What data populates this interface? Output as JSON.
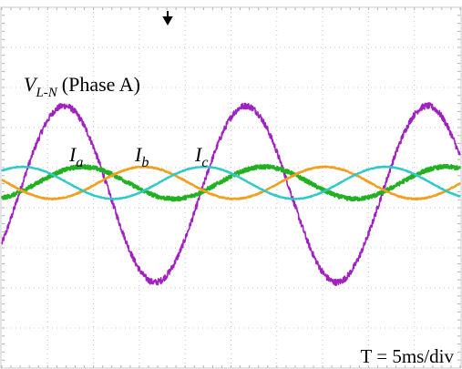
{
  "chart_data": {
    "type": "line",
    "title": "",
    "xlabel": "",
    "ylabel": "",
    "grid": true,
    "timebase": "T = 5ms/div",
    "x_unit": "ms",
    "xlim": [
      0,
      50
    ],
    "ylim": [
      -4,
      4
    ],
    "trigger_marker": "down-arrow",
    "series": [
      {
        "name_main": "V",
        "name_sub": "L-N",
        "name_suffix": "(Phase A)",
        "color": "#a020c0",
        "amplitude_div": 2.2,
        "offset_div": 0,
        "period_ms": 19.8,
        "phase_deg": -34,
        "noise_div": 0.08,
        "samples": [
          {
            "t": 0,
            "v": -1.23
          },
          {
            "t": 5,
            "v": 1.8
          },
          {
            "t": 10,
            "v": 1.23
          },
          {
            "t": 15,
            "v": -1.8
          },
          {
            "t": 20,
            "v": -1.23
          },
          {
            "t": 25,
            "v": 1.8
          },
          {
            "t": 30,
            "v": 1.23
          },
          {
            "t": 35,
            "v": -1.8
          },
          {
            "t": 40,
            "v": -1.23
          },
          {
            "t": 45,
            "v": 1.8
          },
          {
            "t": 50,
            "v": 1.23
          }
        ]
      },
      {
        "name_main": "I",
        "name_sub": "a",
        "color": "#20b020",
        "amplitude_div": 0.4,
        "offset_div": 0.28,
        "period_ms": 19.8,
        "phase_deg": -71,
        "noise_div": 0.05,
        "samples": [
          {
            "t": 0,
            "v": -0.1
          },
          {
            "t": 5,
            "v": 0.41
          },
          {
            "t": 10,
            "v": 0.66
          },
          {
            "t": 15,
            "v": 0.14
          },
          {
            "t": 20,
            "v": -0.1
          },
          {
            "t": 25,
            "v": 0.41
          },
          {
            "t": 30,
            "v": 0.66
          },
          {
            "t": 35,
            "v": 0.14
          },
          {
            "t": 40,
            "v": -0.1
          },
          {
            "t": 45,
            "v": 0.41
          },
          {
            "t": 50,
            "v": 0.66
          }
        ]
      },
      {
        "name_main": "I",
        "name_sub": "b",
        "color": "#f0a020",
        "amplitude_div": 0.4,
        "offset_div": 0.28,
        "period_ms": 19.8,
        "phase_deg": -191,
        "noise_div": 0.015,
        "samples": [
          {
            "t": 0,
            "v": 0.2
          },
          {
            "t": 5,
            "v": -0.12
          },
          {
            "t": 10,
            "v": 0.34
          },
          {
            "t": 15,
            "v": 0.68
          },
          {
            "t": 20,
            "v": 0.2
          },
          {
            "t": 25,
            "v": -0.12
          },
          {
            "t": 30,
            "v": 0.34
          },
          {
            "t": 35,
            "v": 0.68
          },
          {
            "t": 40,
            "v": 0.2
          },
          {
            "t": 45,
            "v": -0.12
          },
          {
            "t": 50,
            "v": 0.34
          }
        ]
      },
      {
        "name_main": "I",
        "name_sub": "c",
        "color": "#30c8c8",
        "amplitude_div": 0.4,
        "offset_div": 0.28,
        "period_ms": 19.8,
        "phase_deg": -311,
        "noise_div": 0.01,
        "samples": [
          {
            "t": 0,
            "v": 0.58
          },
          {
            "t": 5,
            "v": 0.55
          },
          {
            "t": 10,
            "v": -0.12
          },
          {
            "t": 15,
            "v": 0.02
          },
          {
            "t": 20,
            "v": 0.58
          },
          {
            "t": 25,
            "v": 0.55
          },
          {
            "t": 30,
            "v": -0.12
          },
          {
            "t": 35,
            "v": 0.02
          },
          {
            "t": 40,
            "v": 0.58
          },
          {
            "t": 45,
            "v": 0.55
          },
          {
            "t": 50,
            "v": -0.12
          }
        ]
      }
    ]
  }
}
